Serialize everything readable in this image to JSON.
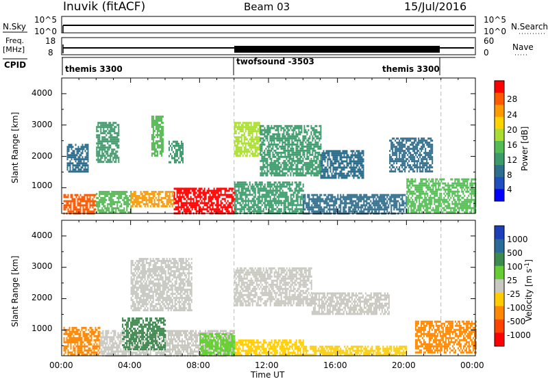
{
  "header": {
    "station": "Inuvik (fitACF)",
    "beam": "Beam 03",
    "date": "15/Jul/2016"
  },
  "strip_panels": {
    "nsky_label": "N.Sky",
    "nsky_ticks": [
      "10^5",
      "10^0"
    ],
    "nsearch_label": "N.Search",
    "nsearch_ticks": [
      "10^5",
      "10^0"
    ],
    "freq_label_line1": "Freq.",
    "freq_label_line2": "[MHz]",
    "freq_ticks": [
      "18",
      "8"
    ],
    "nave_label": "Nave",
    "nave_ticks": [
      "60",
      "0"
    ],
    "cpid_label": "CPID",
    "cpid_segments": [
      {
        "name": "themis 3300",
        "start": 0,
        "end": 10
      },
      {
        "name": "twofsound -3503",
        "start": 10,
        "end": 22
      },
      {
        "name": "themis 3300",
        "start": 10,
        "end": 22
      }
    ]
  },
  "time_axis": {
    "label": "Time UT",
    "ticks": [
      "00:00",
      "04:00",
      "08:00",
      "12:00",
      "16:00",
      "20:00",
      "00:00"
    ]
  },
  "power_colorbar": {
    "label": "Power [dB]",
    "ticks": [
      "28",
      "24",
      "20",
      "16",
      "12",
      "8",
      "4"
    ],
    "colors": [
      "#ff0000",
      "#ff5a00",
      "#ff9a00",
      "#ffd200",
      "#aadd33",
      "#55bb55",
      "#3d9a6a",
      "#2e6e8e",
      "#1f4fbf",
      "#0000ff"
    ]
  },
  "velocity_colorbar": {
    "label": "Velocity [m s^-1]",
    "ticks": [
      "1000",
      "500",
      "100",
      "25",
      "-25",
      "-100",
      "-500",
      "-1000"
    ],
    "colors": [
      "#1a3fb8",
      "#2b6b9a",
      "#3c8a4f",
      "#66cc33",
      "#c8c8c0",
      "#ffcc00",
      "#ff8800",
      "#ff4400",
      "#ff0000"
    ]
  },
  "chart_data": [
    {
      "type": "heatmap",
      "title": "",
      "xlabel": "Time UT",
      "ylabel": "Slant Range [km]",
      "xlim": [
        0,
        24
      ],
      "ylim": [
        180,
        4500
      ],
      "yticks": [
        "1000",
        "2000",
        "3000",
        "4000"
      ],
      "colorbar": "Power [dB]",
      "regions": [
        {
          "x": [
            0.1,
            2.0
          ],
          "y": [
            200,
            800
          ],
          "value": 26
        },
        {
          "x": [
            2.0,
            4.0
          ],
          "y": [
            200,
            900
          ],
          "value": 16
        },
        {
          "x": [
            4.0,
            6.5
          ],
          "y": [
            400,
            900
          ],
          "value": 22
        },
        {
          "x": [
            6.5,
            10.0
          ],
          "y": [
            200,
            1000
          ],
          "value": 28
        },
        {
          "x": [
            10.0,
            14.0
          ],
          "y": [
            200,
            1200
          ],
          "value": 12
        },
        {
          "x": [
            14.0,
            20.0
          ],
          "y": [
            200,
            800
          ],
          "value": 10
        },
        {
          "x": [
            20.0,
            24.0
          ],
          "y": [
            200,
            1300
          ],
          "value": 14
        },
        {
          "x": [
            0.3,
            1.5
          ],
          "y": [
            1500,
            2400
          ],
          "value": 8
        },
        {
          "x": [
            2.0,
            3.3
          ],
          "y": [
            1800,
            3100
          ],
          "value": 12
        },
        {
          "x": [
            5.2,
            5.9
          ],
          "y": [
            2000,
            3300
          ],
          "value": 16
        },
        {
          "x": [
            6.2,
            7.0
          ],
          "y": [
            1800,
            2500
          ],
          "value": 12
        },
        {
          "x": [
            10.0,
            11.5
          ],
          "y": [
            2000,
            3100
          ],
          "value": 18
        },
        {
          "x": [
            11.5,
            15.0
          ],
          "y": [
            1400,
            3000
          ],
          "value": 12
        },
        {
          "x": [
            15.0,
            17.5
          ],
          "y": [
            1300,
            2200
          ],
          "value": 8
        },
        {
          "x": [
            19.0,
            21.5
          ],
          "y": [
            1500,
            2600
          ],
          "value": 10
        }
      ]
    },
    {
      "type": "heatmap",
      "title": "",
      "xlabel": "Time UT",
      "ylabel": "Slant Range [km]",
      "xlim": [
        0,
        24
      ],
      "ylim": [
        180,
        4500
      ],
      "yticks": [
        "1000",
        "2000",
        "3000",
        "4000"
      ],
      "colorbar": "Velocity [m s^-1]",
      "regions": [
        {
          "x": [
            0.1,
            2.2
          ],
          "y": [
            200,
            1100
          ],
          "value": -300
        },
        {
          "x": [
            2.2,
            4.0
          ],
          "y": [
            200,
            1000
          ],
          "value": 0
        },
        {
          "x": [
            4.0,
            6.0
          ],
          "y": [
            200,
            900
          ],
          "value": 0
        },
        {
          "x": [
            6.0,
            10.0
          ],
          "y": [
            200,
            1000
          ],
          "value": 0
        },
        {
          "x": [
            10.0,
            14.0
          ],
          "y": [
            200,
            700
          ],
          "value": -60
        },
        {
          "x": [
            14.0,
            20.0
          ],
          "y": [
            200,
            500
          ],
          "value": -60
        },
        {
          "x": [
            20.5,
            24.0
          ],
          "y": [
            300,
            1300
          ],
          "value": -400
        },
        {
          "x": [
            4.0,
            7.5
          ],
          "y": [
            1600,
            3300
          ],
          "value": 0
        },
        {
          "x": [
            10.0,
            14.5
          ],
          "y": [
            1800,
            3000
          ],
          "value": 0
        },
        {
          "x": [
            14.5,
            19.0
          ],
          "y": [
            1500,
            2200
          ],
          "value": 0
        },
        {
          "x": [
            3.5,
            6.0
          ],
          "y": [
            400,
            1400
          ],
          "value": 200
        },
        {
          "x": [
            8.0,
            10.0
          ],
          "y": [
            200,
            900
          ],
          "value": 80
        }
      ]
    }
  ]
}
